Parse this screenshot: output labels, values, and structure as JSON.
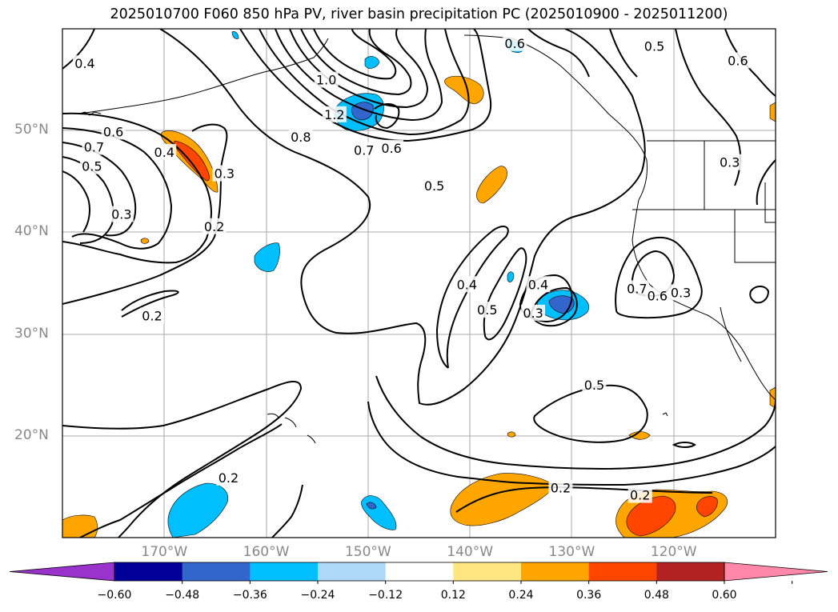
{
  "title": "2025010700 F060 850 hPa PV, river basin precipitation PC (2025010900 - 2025011200)",
  "map": {
    "lon_min": -180,
    "lon_max": -110,
    "lat_min": 10,
    "lat_max": 60,
    "lat_labels": [
      {
        "lat": 50,
        "text": "50°N"
      },
      {
        "lat": 40,
        "text": "40°N"
      },
      {
        "lat": 30,
        "text": "30°N"
      },
      {
        "lat": 20,
        "text": "20°N"
      }
    ],
    "lon_labels": [
      {
        "lon": -170,
        "text": "170°W"
      },
      {
        "lon": -160,
        "text": "160°W"
      },
      {
        "lon": -150,
        "text": "150°W"
      },
      {
        "lon": -140,
        "text": "140°W"
      },
      {
        "lon": -130,
        "text": "130°W"
      },
      {
        "lon": -120,
        "text": "120°W"
      }
    ],
    "contour_labels": [
      {
        "lon": -177.8,
        "lat": 56.6,
        "text": "0.4"
      },
      {
        "lon": -175.0,
        "lat": 49.9,
        "text": "0.6"
      },
      {
        "lon": -176.9,
        "lat": 48.4,
        "text": "0.7"
      },
      {
        "lon": -177.1,
        "lat": 46.5,
        "text": "0.5"
      },
      {
        "lon": -174.2,
        "lat": 41.8,
        "text": "0.3"
      },
      {
        "lon": -170.0,
        "lat": 47.9,
        "text": "0.4"
      },
      {
        "lon": -165.1,
        "lat": 40.6,
        "text": "0.2"
      },
      {
        "lon": -171.2,
        "lat": 31.8,
        "text": "0.2"
      },
      {
        "lon": -154.1,
        "lat": 55.0,
        "text": "1.0"
      },
      {
        "lon": -153.3,
        "lat": 51.6,
        "text": "1.2"
      },
      {
        "lon": -156.6,
        "lat": 49.4,
        "text": "0.8"
      },
      {
        "lon": -150.4,
        "lat": 48.1,
        "text": "0.7"
      },
      {
        "lon": -147.7,
        "lat": 48.3,
        "text": "0.6"
      },
      {
        "lon": -164.1,
        "lat": 45.8,
        "text": "0.3"
      },
      {
        "lon": -143.5,
        "lat": 44.6,
        "text": "0.5"
      },
      {
        "lon": -140.3,
        "lat": 34.9,
        "text": "0.4"
      },
      {
        "lon": -138.3,
        "lat": 32.4,
        "text": "0.5"
      },
      {
        "lon": -133.3,
        "lat": 34.9,
        "text": "0.4"
      },
      {
        "lon": -133.8,
        "lat": 32.1,
        "text": "0.3"
      },
      {
        "lon": -127.8,
        "lat": 25.0,
        "text": "0.5"
      },
      {
        "lon": -123.6,
        "lat": 34.5,
        "text": "0.7"
      },
      {
        "lon": -121.6,
        "lat": 33.8,
        "text": "0.6"
      },
      {
        "lon": -119.3,
        "lat": 34.1,
        "text": "0.3"
      },
      {
        "lon": -114.5,
        "lat": 46.9,
        "text": "0.3"
      },
      {
        "lon": -121.9,
        "lat": 58.3,
        "text": "0.5"
      },
      {
        "lon": -113.7,
        "lat": 56.9,
        "text": "0.6"
      },
      {
        "lon": -135.6,
        "lat": 58.6,
        "text": "0.6"
      },
      {
        "lon": -131.1,
        "lat": 14.9,
        "text": "0.2"
      },
      {
        "lon": -123.3,
        "lat": 14.2,
        "text": "0.2"
      },
      {
        "lon": -163.7,
        "lat": 15.9,
        "text": "0.2"
      }
    ]
  },
  "colorbar": {
    "colors": [
      "#9933cc",
      "#000099",
      "#3366cc",
      "#00bfff",
      "#add8f7",
      "#ffffff",
      "#ffe680",
      "#ffa500",
      "#ff4500",
      "#b22222",
      "#ff88aa"
    ],
    "tick_labels": [
      "−0.60",
      "−0.48",
      "−0.36",
      "−0.24",
      "−0.12",
      "0.12",
      "0.24",
      "0.36",
      "0.48",
      "0.60"
    ]
  }
}
